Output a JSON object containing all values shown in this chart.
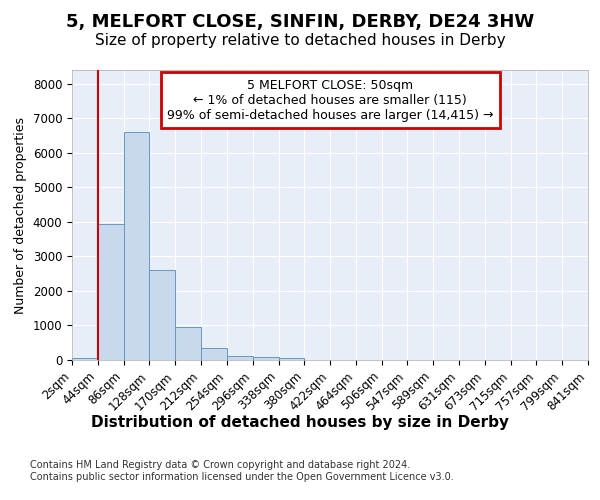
{
  "title1": "5, MELFORT CLOSE, SINFIN, DERBY, DE24 3HW",
  "title2": "Size of property relative to detached houses in Derby",
  "xlabel": "Distribution of detached houses by size in Derby",
  "ylabel": "Number of detached properties",
  "bin_edges": [
    2,
    44,
    86,
    128,
    170,
    212,
    254,
    296,
    338,
    380,
    422,
    464,
    506,
    547,
    589,
    631,
    673,
    715,
    757,
    799,
    841
  ],
  "bar_heights": [
    50,
    3950,
    6600,
    2600,
    950,
    340,
    130,
    80,
    50,
    10,
    5,
    0,
    0,
    0,
    0,
    0,
    0,
    0,
    0,
    0
  ],
  "bar_color": "#c8d8ed",
  "bar_edge_color": "#6699bb",
  "property_line_x": 44,
  "property_line_color": "#cc0000",
  "annotation_text": "5 MELFORT CLOSE: 50sqm\n← 1% of detached houses are smaller (115)\n99% of semi-detached houses are larger (14,415) →",
  "annotation_box_color": "#cc0000",
  "ylim": [
    0,
    8400
  ],
  "yticks": [
    0,
    1000,
    2000,
    3000,
    4000,
    5000,
    6000,
    7000,
    8000
  ],
  "bg_color": "#ffffff",
  "plot_bg_color": "#e8eef8",
  "footer_text": "Contains HM Land Registry data © Crown copyright and database right 2024.\nContains public sector information licensed under the Open Government Licence v3.0.",
  "grid_color": "#ffffff",
  "title1_fontsize": 13,
  "title2_fontsize": 11,
  "xlabel_fontsize": 11,
  "ylabel_fontsize": 9,
  "tick_fontsize": 8.5,
  "annotation_fontsize": 9
}
